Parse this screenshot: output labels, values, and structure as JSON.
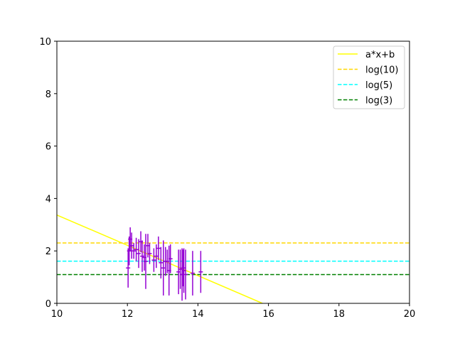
{
  "chart_data": {
    "type": "line",
    "title": "",
    "xlabel": "",
    "ylabel": "",
    "xlim": [
      10,
      20
    ],
    "ylim": [
      0,
      10
    ],
    "xticks": [
      10,
      12,
      14,
      16,
      18,
      20
    ],
    "yticks": [
      0,
      2,
      4,
      6,
      8,
      10
    ],
    "grid": false,
    "legend_position": "top-right",
    "colors": {
      "fit_line": "#ffff00",
      "log10_line": "#ffd700",
      "log5_line": "#00ffff",
      "log3_line": "#008000",
      "errorbar": "#9400d3"
    },
    "series": [
      {
        "name": "a*x+b",
        "style": "solid",
        "color": "#ffff00",
        "x": [
          10,
          15.83
        ],
        "y": [
          3.37,
          0
        ]
      },
      {
        "name": "log(10)",
        "style": "dashed",
        "color": "#ffd700",
        "x": [
          10,
          20
        ],
        "y": [
          2.303,
          2.303
        ]
      },
      {
        "name": "log(5)",
        "style": "dashed",
        "color": "#00ffff",
        "x": [
          10,
          20
        ],
        "y": [
          1.609,
          1.609
        ]
      },
      {
        "name": "log(3)",
        "style": "dashed",
        "color": "#008000",
        "x": [
          10,
          20
        ],
        "y": [
          1.099,
          1.099
        ]
      }
    ],
    "errorbars": {
      "color": "#9400d3",
      "points": [
        {
          "x": 12.02,
          "y": 1.35,
          "yerr": 0.75,
          "xerr": 0.06
        },
        {
          "x": 12.05,
          "y": 2.0,
          "yerr": 0.55,
          "xerr": 0.06
        },
        {
          "x": 12.08,
          "y": 2.45,
          "yerr": 0.45,
          "xerr": 0.06
        },
        {
          "x": 12.12,
          "y": 2.2,
          "yerr": 0.5,
          "xerr": 0.06
        },
        {
          "x": 12.18,
          "y": 2.0,
          "yerr": 0.3,
          "xerr": 0.06
        },
        {
          "x": 12.25,
          "y": 2.05,
          "yerr": 0.45,
          "xerr": 0.06
        },
        {
          "x": 12.32,
          "y": 1.9,
          "yerr": 0.55,
          "xerr": 0.06
        },
        {
          "x": 12.38,
          "y": 2.35,
          "yerr": 0.4,
          "xerr": 0.06
        },
        {
          "x": 12.42,
          "y": 1.8,
          "yerr": 0.6,
          "xerr": 0.06
        },
        {
          "x": 12.48,
          "y": 1.75,
          "yerr": 0.5,
          "xerr": 0.06
        },
        {
          "x": 12.52,
          "y": 1.6,
          "yerr": 1.05,
          "xerr": 0.06
        },
        {
          "x": 12.58,
          "y": 2.2,
          "yerr": 0.45,
          "xerr": 0.06
        },
        {
          "x": 12.63,
          "y": 1.9,
          "yerr": 0.4,
          "xerr": 0.06
        },
        {
          "x": 12.75,
          "y": 1.65,
          "yerr": 0.45,
          "xerr": 0.06
        },
        {
          "x": 12.82,
          "y": 1.8,
          "yerr": 0.45,
          "xerr": 0.06
        },
        {
          "x": 12.88,
          "y": 2.1,
          "yerr": 0.45,
          "xerr": 0.06
        },
        {
          "x": 12.95,
          "y": 1.55,
          "yerr": 0.6,
          "xerr": 0.06
        },
        {
          "x": 13.02,
          "y": 1.35,
          "yerr": 1.05,
          "xerr": 0.06
        },
        {
          "x": 13.08,
          "y": 1.6,
          "yerr": 0.55,
          "xerr": 0.06
        },
        {
          "x": 13.13,
          "y": 1.6,
          "yerr": 0.45,
          "xerr": 0.06
        },
        {
          "x": 13.18,
          "y": 1.25,
          "yerr": 0.95,
          "xerr": 0.06
        },
        {
          "x": 13.22,
          "y": 1.7,
          "yerr": 0.55,
          "xerr": 0.06
        },
        {
          "x": 13.45,
          "y": 1.2,
          "yerr": 0.85,
          "xerr": 0.06
        },
        {
          "x": 13.5,
          "y": 1.3,
          "yerr": 0.75,
          "xerr": 0.06
        },
        {
          "x": 13.55,
          "y": 1.1,
          "yerr": 1.0,
          "xerr": 0.06
        },
        {
          "x": 13.58,
          "y": 1.35,
          "yerr": 0.7,
          "xerr": 0.06
        },
        {
          "x": 13.6,
          "y": 1.25,
          "yerr": 0.85,
          "xerr": 0.06
        },
        {
          "x": 13.65,
          "y": 1.1,
          "yerr": 0.95,
          "xerr": 0.06
        },
        {
          "x": 13.85,
          "y": 1.15,
          "yerr": 0.85,
          "xerr": 0.06
        },
        {
          "x": 14.08,
          "y": 1.2,
          "yerr": 0.8,
          "xerr": 0.06
        }
      ]
    }
  }
}
